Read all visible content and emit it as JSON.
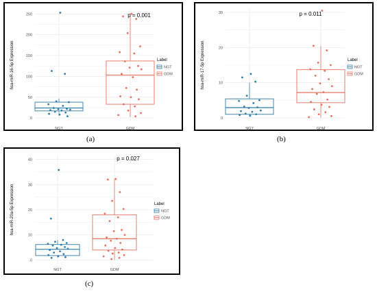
{
  "colors": {
    "NGT": "#2E7BAE",
    "GDM": "#E8705C",
    "grid": "#EBEBEB",
    "text": "#4D4D4D"
  },
  "subfigure_labels": [
    "(a)",
    "(b)",
    "(c)"
  ],
  "chart_data": [
    {
      "type": "box",
      "panel": "a",
      "ylabel": "hsa-miR-16-5p Expression",
      "xlabel": "",
      "categories": [
        "NGT",
        "GDM"
      ],
      "ylim": [
        -8,
        262
      ],
      "yticks": [
        0,
        50,
        100,
        150,
        200,
        250
      ],
      "grid": true,
      "legend_title": "Label",
      "legend_position": "right",
      "annotation": "p = 0.001",
      "series": [
        {
          "name": "NGT",
          "box": {
            "min": 6,
            "q1": 17,
            "median": 24,
            "q3": 38,
            "max": 47
          },
          "points": [
            253,
            113,
            106,
            40,
            38,
            33,
            29,
            24,
            22,
            21,
            20,
            19,
            18,
            15,
            13,
            10,
            8,
            4
          ]
        },
        {
          "name": "GDM",
          "box": {
            "min": 2,
            "q1": 33,
            "median": 103,
            "q3": 137,
            "max": 250
          },
          "points": [
            250,
            244,
            238,
            204,
            172,
            158,
            155,
            136,
            125,
            121,
            117,
            106,
            98,
            72,
            68,
            52,
            50,
            45,
            33,
            28,
            18,
            12,
            7,
            4
          ]
        }
      ]
    },
    {
      "type": "box",
      "panel": "b",
      "ylabel": "hsa-miR-17-5p Expression",
      "xlabel": "",
      "categories": [
        "NGT",
        "GDM"
      ],
      "ylim": [
        -1,
        31
      ],
      "yticks": [
        0,
        10,
        20,
        30
      ],
      "grid": true,
      "legend_title": "Label",
      "legend_position": "right",
      "annotation": "p = 0.011",
      "series": [
        {
          "name": "NGT",
          "box": {
            "min": 0.3,
            "q1": 1.0,
            "median": 2.9,
            "q3": 5.4,
            "max": 10.0
          },
          "points": [
            12.5,
            11.5,
            10.3,
            6.3,
            5.0,
            4.8,
            4.2,
            3.2,
            3.0,
            2.8,
            2.1,
            1.9,
            1.7,
            1.2,
            1.0,
            0.8,
            0.6
          ]
        },
        {
          "name": "GDM",
          "box": {
            "min": 0.1,
            "q1": 4.3,
            "median": 7.2,
            "q3": 13.7,
            "max": 20.5
          },
          "points": [
            30.5,
            20.5,
            19.2,
            15.7,
            15.0,
            13.8,
            13.4,
            12.0,
            11.0,
            9.8,
            9.0,
            8.2,
            7.3,
            6.8,
            5.2,
            4.5,
            3.7,
            3.1,
            2.4,
            1.6,
            1.0,
            0.5,
            0.2
          ]
        }
      ]
    },
    {
      "type": "box",
      "panel": "c",
      "ylabel": "hsa-miR-20a-5p Expression",
      "xlabel": "",
      "categories": [
        "NGT",
        "GDM"
      ],
      "ylim": [
        -1.5,
        41.5
      ],
      "yticks": [
        0,
        10,
        20,
        30,
        40
      ],
      "grid": true,
      "legend_title": "Label",
      "legend_position": "right",
      "annotation": "p = 0.027",
      "series": [
        {
          "name": "NGT",
          "box": {
            "min": 0.8,
            "q1": 1.8,
            "median": 4.3,
            "q3": 6.2,
            "max": 8.0
          },
          "points": [
            35.8,
            16.5,
            8.0,
            7.3,
            6.8,
            6.5,
            6.1,
            5.8,
            5.2,
            4.8,
            4.5,
            4.0,
            3.5,
            3.0,
            2.4,
            2.0,
            1.6,
            1.2,
            0.9
          ]
        },
        {
          "name": "GDM",
          "box": {
            "min": 0.1,
            "q1": 4.0,
            "median": 8.5,
            "q3": 18.0,
            "max": 32.0
          },
          "points": [
            32.2,
            32.0,
            27.0,
            23.5,
            20.3,
            18.5,
            17.0,
            15.5,
            12.0,
            11.5,
            10.0,
            9.0,
            8.5,
            7.7,
            6.8,
            5.8,
            4.8,
            4.2,
            3.7,
            3.0,
            2.6,
            2.0,
            1.5,
            0.9,
            0.4
          ]
        }
      ]
    }
  ]
}
